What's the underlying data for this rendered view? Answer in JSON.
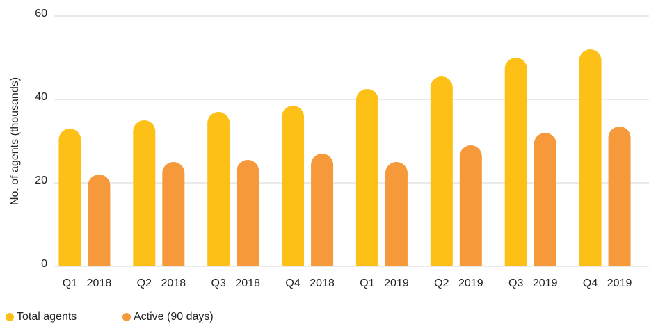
{
  "chart_data": {
    "type": "bar",
    "y_label": "No. of agents (thousands)",
    "categories": [
      [
        "Q1",
        "2018"
      ],
      [
        "Q2",
        "2018"
      ],
      [
        "Q3",
        "2018"
      ],
      [
        "Q4",
        "2018"
      ],
      [
        "Q1",
        "2019"
      ],
      [
        "Q2",
        "2019"
      ],
      [
        "Q3",
        "2019"
      ],
      [
        "Q4",
        "2019"
      ]
    ],
    "series": [
      {
        "name": "Total agents",
        "color": "#fcc016",
        "values": [
          33,
          35,
          37,
          38.5,
          42.5,
          45.5,
          50,
          52
        ]
      },
      {
        "name": "Active (90 days)",
        "color": "#f5993b",
        "values": [
          22,
          25,
          25.5,
          27,
          25,
          29,
          32,
          33.5
        ]
      }
    ],
    "ylim": [
      0,
      60
    ],
    "yticks": [
      0,
      20,
      40,
      60
    ],
    "grid": true,
    "legend": "bottom-left"
  }
}
